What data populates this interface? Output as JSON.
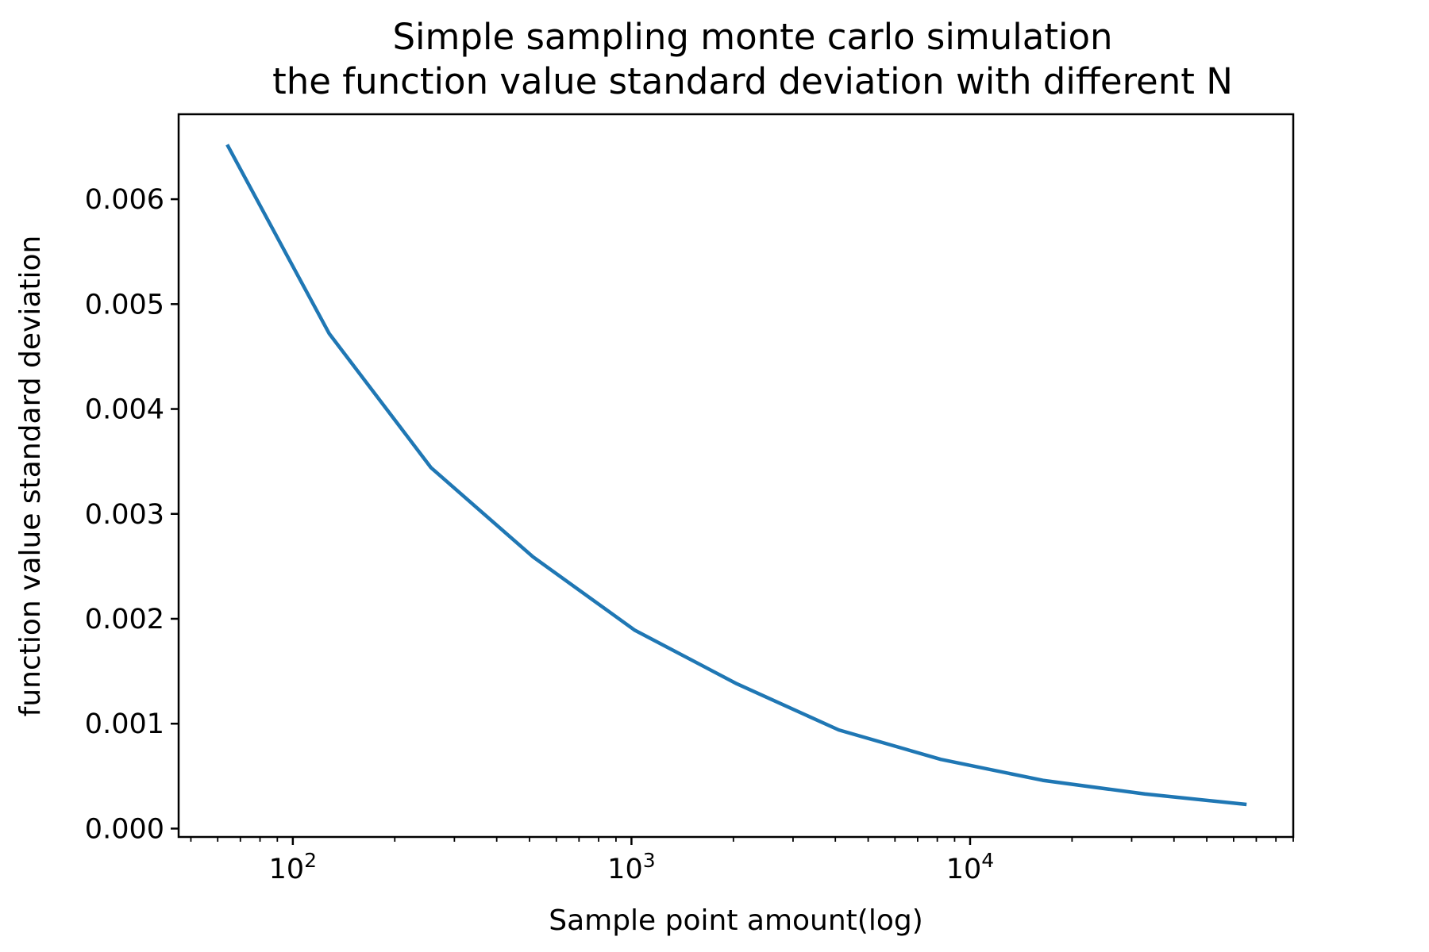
{
  "chart_data": {
    "type": "line",
    "title": "Simple sampling monte carlo simulation",
    "subtitle": "the function value standard deviation with different N",
    "xlabel": "Sample point amount(log)",
    "ylabel": "function value standard deviation",
    "xscale": "log",
    "xlim": [
      46,
      90000
    ],
    "ylim": [
      -8e-05,
      0.00681
    ],
    "grid": false,
    "legend": "none",
    "x_ticks": [
      {
        "value": 100,
        "base": "10",
        "exp": "2"
      },
      {
        "value": 1000,
        "base": "10",
        "exp": "3"
      },
      {
        "value": 10000,
        "base": "10",
        "exp": "4"
      }
    ],
    "y_ticks": [
      {
        "value": 0.0,
        "label": "0.000"
      },
      {
        "value": 0.001,
        "label": "0.001"
      },
      {
        "value": 0.002,
        "label": "0.002"
      },
      {
        "value": 0.003,
        "label": "0.003"
      },
      {
        "value": 0.004,
        "label": "0.004"
      },
      {
        "value": 0.005,
        "label": "0.005"
      },
      {
        "value": 0.006,
        "label": "0.006"
      }
    ],
    "series": [
      {
        "color": "#1f77b4",
        "x": [
          64,
          128,
          256,
          512,
          1024,
          2048,
          4096,
          8192,
          16384,
          32768,
          65536
        ],
        "y": [
          0.00652,
          0.00472,
          0.00344,
          0.00259,
          0.00189,
          0.00138,
          0.00094,
          0.00066,
          0.00046,
          0.00033,
          0.00023
        ]
      }
    ]
  }
}
